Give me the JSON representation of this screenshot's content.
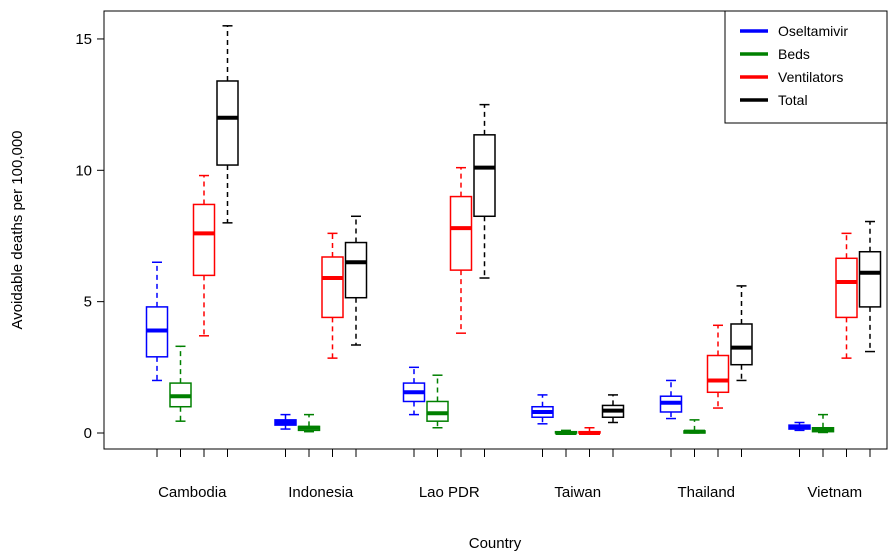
{
  "chart_data": {
    "type": "box",
    "title": "",
    "xlabel": "Country",
    "ylabel": "Avoidable deaths per 100,000",
    "ylim": [
      -0.5,
      16.3
    ],
    "yticks": [
      0,
      5,
      10,
      15
    ],
    "ytick_labels": [
      "0",
      "5",
      "10",
      "15"
    ],
    "categories": [
      "Cambodia",
      "Indonesia",
      "Lao PDR",
      "Taiwan",
      "Thailand",
      "Vietnam"
    ],
    "legend_position": "top-right",
    "series": [
      {
        "name": "Oseltamivir",
        "color": "#0000ff",
        "boxes": [
          {
            "min": 2.0,
            "q1": 2.9,
            "median": 3.9,
            "q3": 4.8,
            "max": 6.5
          },
          {
            "min": 0.15,
            "q1": 0.3,
            "median": 0.4,
            "q3": 0.5,
            "max": 0.7
          },
          {
            "min": 0.7,
            "q1": 1.2,
            "median": 1.55,
            "q3": 1.9,
            "max": 2.5
          },
          {
            "min": 0.35,
            "q1": 0.6,
            "median": 0.8,
            "q3": 1.0,
            "max": 1.45
          },
          {
            "min": 0.55,
            "q1": 0.8,
            "median": 1.15,
            "q3": 1.4,
            "max": 2.0
          },
          {
            "min": 0.1,
            "q1": 0.15,
            "median": 0.22,
            "q3": 0.3,
            "max": 0.4
          }
        ]
      },
      {
        "name": "Beds",
        "color": "#008000",
        "boxes": [
          {
            "min": 0.45,
            "q1": 1.0,
            "median": 1.4,
            "q3": 1.9,
            "max": 3.3
          },
          {
            "min": 0.05,
            "q1": 0.1,
            "median": 0.2,
            "q3": 0.25,
            "max": 0.7
          },
          {
            "min": 0.2,
            "q1": 0.45,
            "median": 0.75,
            "q3": 1.2,
            "max": 2.2
          },
          {
            "min": 0.0,
            "q1": 0.0,
            "median": 0.0,
            "q3": 0.05,
            "max": 0.1
          },
          {
            "min": 0.0,
            "q1": 0.0,
            "median": 0.05,
            "q3": 0.08,
            "max": 0.5
          },
          {
            "min": 0.02,
            "q1": 0.05,
            "median": 0.12,
            "q3": 0.2,
            "max": 0.7
          }
        ]
      },
      {
        "name": "Ventilators",
        "color": "#ff0000",
        "boxes": [
          {
            "min": 3.7,
            "q1": 6.0,
            "median": 7.6,
            "q3": 8.7,
            "max": 9.8
          },
          {
            "min": 2.85,
            "q1": 4.4,
            "median": 5.9,
            "q3": 6.7,
            "max": 7.6
          },
          {
            "min": 3.8,
            "q1": 6.2,
            "median": 7.8,
            "q3": 9.0,
            "max": 10.1
          },
          {
            "min": 0.0,
            "q1": 0.0,
            "median": 0.0,
            "q3": 0.05,
            "max": 0.2
          },
          {
            "min": 0.95,
            "q1": 1.55,
            "median": 2.0,
            "q3": 2.95,
            "max": 4.1
          },
          {
            "min": 2.85,
            "q1": 4.4,
            "median": 5.75,
            "q3": 6.65,
            "max": 7.6
          }
        ]
      },
      {
        "name": "Total",
        "color": "#000000",
        "boxes": [
          {
            "min": 8.0,
            "q1": 10.2,
            "median": 12.0,
            "q3": 13.4,
            "max": 15.5
          },
          {
            "min": 3.35,
            "q1": 5.15,
            "median": 6.5,
            "q3": 7.25,
            "max": 8.25
          },
          {
            "min": 5.9,
            "q1": 8.25,
            "median": 10.1,
            "q3": 11.35,
            "max": 12.5
          },
          {
            "min": 0.4,
            "q1": 0.6,
            "median": 0.85,
            "q3": 1.05,
            "max": 1.45
          },
          {
            "min": 2.0,
            "q1": 2.6,
            "median": 3.25,
            "q3": 4.15,
            "max": 5.6
          },
          {
            "min": 3.1,
            "q1": 4.8,
            "median": 6.1,
            "q3": 6.9,
            "max": 8.05
          }
        ]
      }
    ]
  }
}
